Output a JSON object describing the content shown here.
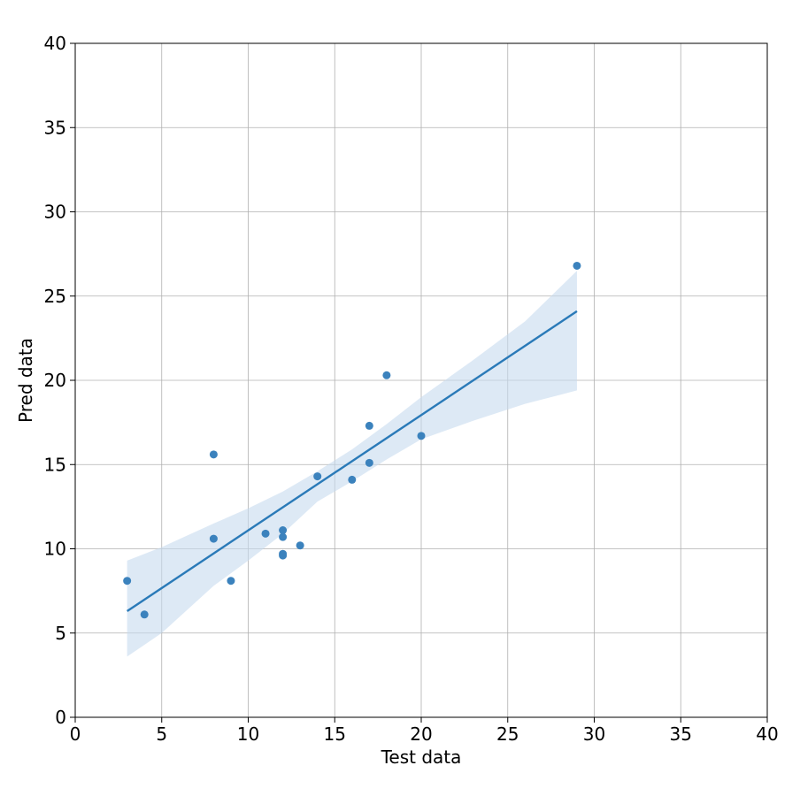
{
  "chart_data": {
    "type": "scatter",
    "title": "",
    "xlabel": "Test data",
    "ylabel": "Pred data",
    "xlim": [
      0,
      40
    ],
    "ylim": [
      0,
      40
    ],
    "xticks": [
      0,
      5,
      10,
      15,
      20,
      25,
      30,
      35,
      40
    ],
    "yticks": [
      0,
      5,
      10,
      15,
      20,
      25,
      30,
      35,
      40
    ],
    "xtick_labels": [
      "0",
      "5",
      "10",
      "15",
      "20",
      "25",
      "30",
      "35",
      "40"
    ],
    "ytick_labels": [
      "0",
      "5",
      "10",
      "15",
      "20",
      "25",
      "30",
      "35",
      "40"
    ],
    "grid": true,
    "colors": {
      "point": "#3b82bd",
      "line": "#2a7ab8",
      "band": "#c6dbef"
    },
    "points": [
      {
        "x": 3,
        "y": 8.1
      },
      {
        "x": 4,
        "y": 6.1
      },
      {
        "x": 8,
        "y": 15.6
      },
      {
        "x": 8,
        "y": 10.6
      },
      {
        "x": 9,
        "y": 8.1
      },
      {
        "x": 11,
        "y": 10.9
      },
      {
        "x": 12,
        "y": 11.1
      },
      {
        "x": 12,
        "y": 10.7
      },
      {
        "x": 12,
        "y": 9.7
      },
      {
        "x": 12,
        "y": 9.6
      },
      {
        "x": 13,
        "y": 10.2
      },
      {
        "x": 14,
        "y": 14.3
      },
      {
        "x": 16,
        "y": 14.1
      },
      {
        "x": 17,
        "y": 17.3
      },
      {
        "x": 17,
        "y": 15.1
      },
      {
        "x": 18,
        "y": 20.3
      },
      {
        "x": 20,
        "y": 16.7
      },
      {
        "x": 29,
        "y": 26.8
      }
    ],
    "regression": {
      "x": [
        3,
        29
      ],
      "y": [
        6.3,
        24.1
      ]
    },
    "confidence_band": {
      "upper": [
        [
          3,
          9.3
        ],
        [
          5,
          10.1
        ],
        [
          8,
          11.5
        ],
        [
          10,
          12.4
        ],
        [
          12,
          13.4
        ],
        [
          14,
          14.6
        ],
        [
          16,
          15.9
        ],
        [
          18,
          17.4
        ],
        [
          20,
          19.0
        ],
        [
          23,
          21.2
        ],
        [
          26,
          23.5
        ],
        [
          29,
          26.5
        ]
      ],
      "lower": [
        [
          3,
          3.6
        ],
        [
          5,
          5.0
        ],
        [
          8,
          7.8
        ],
        [
          10,
          9.3
        ],
        [
          12,
          10.9
        ],
        [
          14,
          12.8
        ],
        [
          16,
          14.0
        ],
        [
          18,
          15.3
        ],
        [
          20,
          16.5
        ],
        [
          23,
          17.6
        ],
        [
          26,
          18.6
        ],
        [
          29,
          19.4
        ]
      ]
    }
  }
}
